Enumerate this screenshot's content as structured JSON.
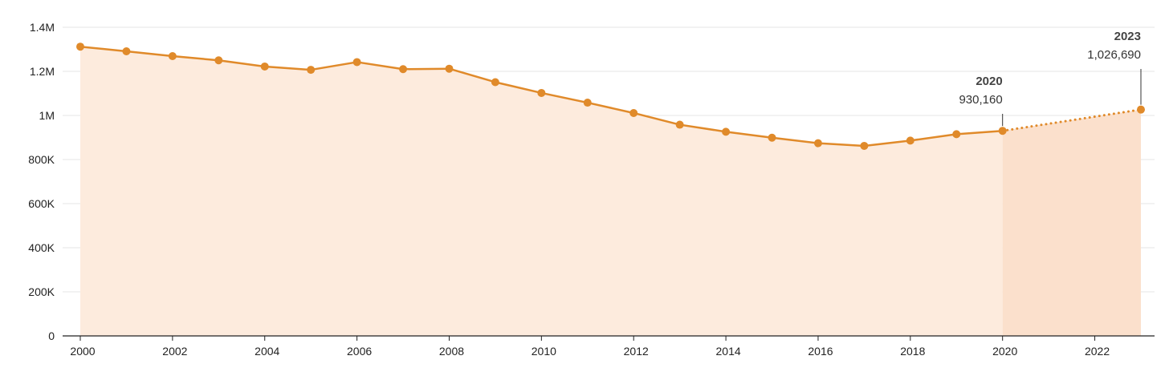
{
  "chart_data": {
    "type": "area",
    "title": "",
    "xlabel": "",
    "ylabel": "",
    "x": [
      2000,
      2001,
      2002,
      2003,
      2004,
      2005,
      2006,
      2007,
      2008,
      2009,
      2010,
      2011,
      2012,
      2013,
      2014,
      2015,
      2016,
      2017,
      2018,
      2019,
      2020,
      2023
    ],
    "series": [
      {
        "values": [
          1312000,
          1291000,
          1269000,
          1250000,
          1222000,
          1207000,
          1242000,
          1210000,
          1212000,
          1151000,
          1102000,
          1058000,
          1011000,
          958000,
          926000,
          899000,
          874000,
          862000,
          886000,
          915000,
          930160,
          1026690
        ]
      }
    ],
    "projected_from": 2020,
    "xlim": [
      2000,
      2023
    ],
    "ylim": [
      0,
      1400000
    ],
    "x_ticks": [
      2000,
      2002,
      2004,
      2006,
      2008,
      2010,
      2012,
      2014,
      2016,
      2018,
      2020,
      2022
    ],
    "x_tick_labels": [
      "2000",
      "2002",
      "2004",
      "2006",
      "2008",
      "2010",
      "2012",
      "2014",
      "2016",
      "2018",
      "2020",
      "2022"
    ],
    "y_ticks": [
      0,
      200000,
      400000,
      600000,
      800000,
      1000000,
      1200000,
      1400000
    ],
    "y_tick_labels": [
      "0",
      "200K",
      "400K",
      "600K",
      "800K",
      "1M",
      "1.2M",
      "1.4M"
    ],
    "grid": true,
    "colors": {
      "line": "#e08a2a",
      "fill": "#fdebdd",
      "fill_projected": "#fbe0cc",
      "grid": "#e6e6e6",
      "axis": "#222222"
    },
    "annotations": [
      {
        "x": 2020,
        "year": "2020",
        "value_label": "930,160"
      },
      {
        "x": 2023,
        "year": "2023",
        "value_label": "1,026,690"
      }
    ]
  }
}
